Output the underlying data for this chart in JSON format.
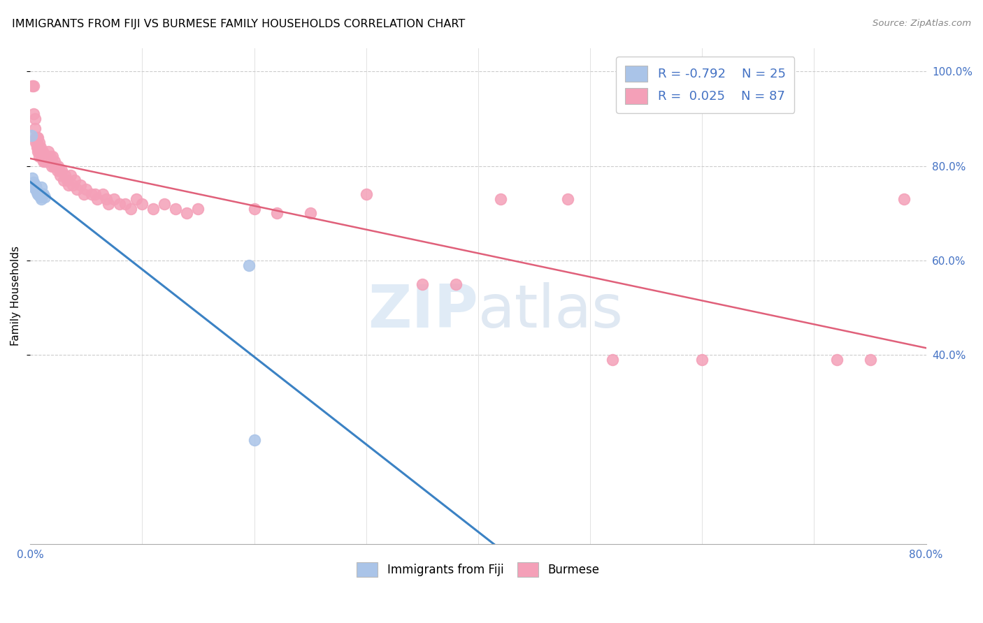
{
  "title": "IMMIGRANTS FROM FIJI VS BURMESE FAMILY HOUSEHOLDS CORRELATION CHART",
  "source": "Source: ZipAtlas.com",
  "ylabel": "Family Households",
  "right_yticks": [
    "40.0%",
    "60.0%",
    "80.0%",
    "100.0%"
  ],
  "right_ytick_vals": [
    0.4,
    0.6,
    0.8,
    1.0
  ],
  "legend_fiji_R": "-0.792",
  "legend_fiji_N": "25",
  "legend_burmese_R": "0.025",
  "legend_burmese_N": "87",
  "fiji_color": "#aac4e8",
  "fiji_line_color": "#3b82c4",
  "burmese_color": "#f4a0b8",
  "burmese_line_color": "#e0607a",
  "watermark_ZIP": "ZIP",
  "watermark_atlas": "atlas",
  "xlim": [
    0.0,
    0.8
  ],
  "ylim": [
    0.0,
    1.05
  ],
  "fiji_points_x": [
    0.001,
    0.002,
    0.003,
    0.003,
    0.003,
    0.003,
    0.004,
    0.004,
    0.004,
    0.005,
    0.005,
    0.005,
    0.006,
    0.006,
    0.006,
    0.007,
    0.007,
    0.008,
    0.009,
    0.01,
    0.01,
    0.012,
    0.013,
    0.195,
    0.2
  ],
  "fiji_points_y": [
    0.865,
    0.775,
    0.765,
    0.76,
    0.76,
    0.758,
    0.76,
    0.755,
    0.752,
    0.758,
    0.755,
    0.75,
    0.748,
    0.745,
    0.745,
    0.742,
    0.74,
    0.738,
    0.735,
    0.755,
    0.73,
    0.74,
    0.735,
    0.59,
    0.22
  ],
  "burmese_points_x": [
    0.002,
    0.003,
    0.003,
    0.004,
    0.004,
    0.005,
    0.005,
    0.006,
    0.006,
    0.006,
    0.007,
    0.007,
    0.007,
    0.007,
    0.008,
    0.008,
    0.008,
    0.008,
    0.009,
    0.009,
    0.01,
    0.01,
    0.011,
    0.011,
    0.012,
    0.012,
    0.013,
    0.013,
    0.014,
    0.015,
    0.015,
    0.016,
    0.016,
    0.017,
    0.018,
    0.018,
    0.019,
    0.02,
    0.021,
    0.022,
    0.023,
    0.024,
    0.025,
    0.026,
    0.027,
    0.028,
    0.03,
    0.031,
    0.033,
    0.034,
    0.036,
    0.038,
    0.04,
    0.042,
    0.045,
    0.048,
    0.05,
    0.055,
    0.058,
    0.06,
    0.065,
    0.068,
    0.07,
    0.075,
    0.08,
    0.085,
    0.09,
    0.095,
    0.1,
    0.11,
    0.12,
    0.13,
    0.14,
    0.15,
    0.2,
    0.22,
    0.25,
    0.3,
    0.35,
    0.38,
    0.42,
    0.48,
    0.52,
    0.6,
    0.72,
    0.75,
    0.78
  ],
  "burmese_points_y": [
    0.97,
    0.91,
    0.97,
    0.88,
    0.9,
    0.86,
    0.85,
    0.86,
    0.84,
    0.85,
    0.86,
    0.84,
    0.83,
    0.84,
    0.85,
    0.84,
    0.83,
    0.82,
    0.84,
    0.83,
    0.83,
    0.82,
    0.83,
    0.82,
    0.82,
    0.81,
    0.82,
    0.81,
    0.81,
    0.82,
    0.81,
    0.83,
    0.82,
    0.81,
    0.82,
    0.81,
    0.8,
    0.82,
    0.8,
    0.81,
    0.8,
    0.79,
    0.8,
    0.79,
    0.78,
    0.79,
    0.77,
    0.78,
    0.77,
    0.76,
    0.78,
    0.76,
    0.77,
    0.75,
    0.76,
    0.74,
    0.75,
    0.74,
    0.74,
    0.73,
    0.74,
    0.73,
    0.72,
    0.73,
    0.72,
    0.72,
    0.71,
    0.73,
    0.72,
    0.71,
    0.72,
    0.71,
    0.7,
    0.71,
    0.71,
    0.7,
    0.7,
    0.74,
    0.55,
    0.55,
    0.73,
    0.73,
    0.39,
    0.39,
    0.39,
    0.39,
    0.73
  ]
}
